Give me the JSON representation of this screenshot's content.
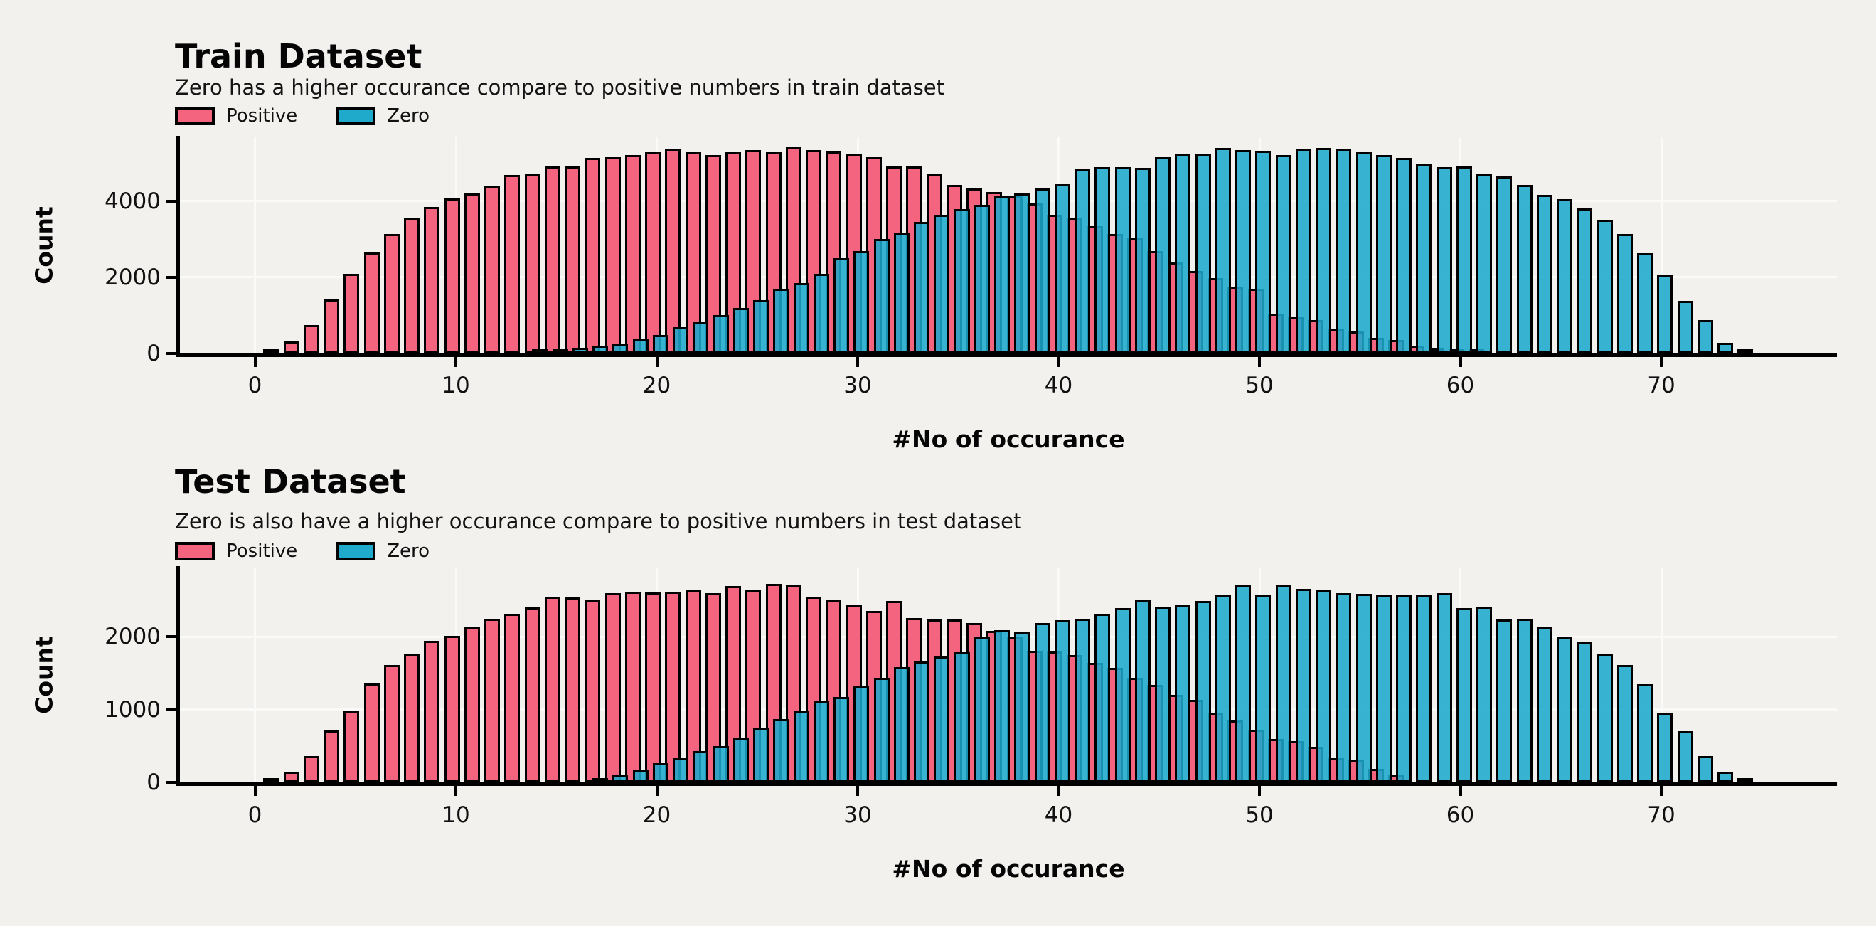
{
  "figure": {
    "background_color": "#f2f1ee",
    "gridline_color": "#fafaf8",
    "bar_edge_color": "#000000",
    "positive_color": "#f5647e",
    "zero_color": "#1fa9cb"
  },
  "chart_data": [
    {
      "type": "bar",
      "title": "Train Dataset",
      "subtitle": "Zero has a higher occurance compare to positive numbers in train dataset",
      "xlabel": "#No of occurance",
      "ylabel": "Count",
      "legend_position": "top-left",
      "grid": true,
      "xlim": [
        -3.8,
        78.7
      ],
      "ylim": [
        0,
        5680
      ],
      "xticks": [
        0,
        10,
        20,
        30,
        40,
        50,
        60,
        70
      ],
      "yticks": [
        0,
        2000,
        4000
      ],
      "series": [
        {
          "name": "Positive",
          "color": "#f5647e",
          "points": [
            [
              1,
              90
            ],
            [
              2,
              310
            ],
            [
              3,
              750
            ],
            [
              4,
              1420
            ],
            [
              5,
              2090
            ],
            [
              6,
              2660
            ],
            [
              7,
              3140
            ],
            [
              8,
              3560
            ],
            [
              9,
              3840
            ],
            [
              10,
              4080
            ],
            [
              11,
              4210
            ],
            [
              12,
              4390
            ],
            [
              13,
              4690
            ],
            [
              14,
              4720
            ],
            [
              15,
              4910
            ],
            [
              16,
              4920
            ],
            [
              17,
              5140
            ],
            [
              18,
              5160
            ],
            [
              19,
              5220
            ],
            [
              20,
              5280
            ],
            [
              21,
              5360
            ],
            [
              22,
              5280
            ],
            [
              23,
              5220
            ],
            [
              24,
              5280
            ],
            [
              25,
              5350
            ],
            [
              26,
              5280
            ],
            [
              27,
              5430
            ],
            [
              28,
              5350
            ],
            [
              29,
              5300
            ],
            [
              30,
              5250
            ],
            [
              31,
              5150
            ],
            [
              32,
              4920
            ],
            [
              33,
              4920
            ],
            [
              34,
              4710
            ],
            [
              35,
              4420
            ],
            [
              36,
              4330
            ],
            [
              37,
              4250
            ],
            [
              38,
              4150
            ],
            [
              39,
              3950
            ],
            [
              40,
              3650
            ],
            [
              41,
              3550
            ],
            [
              42,
              3350
            ],
            [
              43,
              3140
            ],
            [
              44,
              3050
            ],
            [
              45,
              2700
            ],
            [
              46,
              2400
            ],
            [
              47,
              2160
            ],
            [
              48,
              1980
            ],
            [
              49,
              1750
            ],
            [
              50,
              1700
            ],
            [
              51,
              1020
            ],
            [
              52,
              960
            ],
            [
              53,
              880
            ],
            [
              54,
              660
            ],
            [
              55,
              580
            ],
            [
              56,
              420
            ],
            [
              57,
              360
            ],
            [
              58,
              200
            ],
            [
              59,
              140
            ],
            [
              60,
              90
            ],
            [
              61,
              50
            ]
          ]
        },
        {
          "name": "Zero",
          "color": "#1fa9cb",
          "points": [
            [
              14,
              50
            ],
            [
              15,
              90
            ],
            [
              16,
              150
            ],
            [
              17,
              210
            ],
            [
              18,
              260
            ],
            [
              19,
              390
            ],
            [
              20,
              490
            ],
            [
              21,
              690
            ],
            [
              22,
              830
            ],
            [
              23,
              1000
            ],
            [
              24,
              1200
            ],
            [
              25,
              1400
            ],
            [
              26,
              1700
            ],
            [
              27,
              1850
            ],
            [
              28,
              2100
            ],
            [
              29,
              2500
            ],
            [
              30,
              2700
            ],
            [
              31,
              3000
            ],
            [
              32,
              3160
            ],
            [
              33,
              3450
            ],
            [
              34,
              3650
            ],
            [
              35,
              3800
            ],
            [
              36,
              3900
            ],
            [
              37,
              4150
            ],
            [
              38,
              4200
            ],
            [
              39,
              4330
            ],
            [
              40,
              4450
            ],
            [
              41,
              4850
            ],
            [
              42,
              4890
            ],
            [
              43,
              4890
            ],
            [
              44,
              4880
            ],
            [
              45,
              5150
            ],
            [
              46,
              5240
            ],
            [
              47,
              5250
            ],
            [
              48,
              5400
            ],
            [
              49,
              5350
            ],
            [
              50,
              5320
            ],
            [
              51,
              5220
            ],
            [
              52,
              5370
            ],
            [
              53,
              5400
            ],
            [
              54,
              5390
            ],
            [
              55,
              5280
            ],
            [
              56,
              5220
            ],
            [
              57,
              5140
            ],
            [
              58,
              4970
            ],
            [
              59,
              4900
            ],
            [
              60,
              4920
            ],
            [
              61,
              4700
            ],
            [
              62,
              4650
            ],
            [
              63,
              4430
            ],
            [
              64,
              4160
            ],
            [
              65,
              4060
            ],
            [
              66,
              3820
            ],
            [
              67,
              3520
            ],
            [
              68,
              3130
            ],
            [
              69,
              2630
            ],
            [
              70,
              2080
            ],
            [
              71,
              1380
            ],
            [
              72,
              880
            ],
            [
              73,
              280
            ],
            [
              74,
              60
            ]
          ]
        }
      ]
    },
    {
      "type": "bar",
      "title": "Test Dataset",
      "subtitle": "Zero is also have a higher occurance compare to positive numbers in test dataset",
      "xlabel": "#No of occurance",
      "ylabel": "Count",
      "legend_position": "top-left",
      "grid": true,
      "xlim": [
        -3.8,
        78.7
      ],
      "ylim": [
        0,
        2950
      ],
      "xticks": [
        0,
        10,
        20,
        30,
        40,
        50,
        60,
        70
      ],
      "yticks": [
        0,
        1000,
        2000
      ],
      "series": [
        {
          "name": "Positive",
          "color": "#f5647e",
          "points": [
            [
              1,
              40
            ],
            [
              2,
              150
            ],
            [
              3,
              360
            ],
            [
              4,
              710
            ],
            [
              5,
              980
            ],
            [
              6,
              1360
            ],
            [
              7,
              1610
            ],
            [
              8,
              1760
            ],
            [
              9,
              1940
            ],
            [
              10,
              2010
            ],
            [
              11,
              2130
            ],
            [
              12,
              2250
            ],
            [
              13,
              2320
            ],
            [
              14,
              2400
            ],
            [
              15,
              2550
            ],
            [
              16,
              2540
            ],
            [
              17,
              2500
            ],
            [
              18,
              2600
            ],
            [
              19,
              2620
            ],
            [
              20,
              2610
            ],
            [
              21,
              2620
            ],
            [
              22,
              2650
            ],
            [
              23,
              2600
            ],
            [
              24,
              2700
            ],
            [
              25,
              2650
            ],
            [
              26,
              2730
            ],
            [
              27,
              2720
            ],
            [
              28,
              2550
            ],
            [
              29,
              2500
            ],
            [
              30,
              2440
            ],
            [
              31,
              2350
            ],
            [
              32,
              2490
            ],
            [
              33,
              2260
            ],
            [
              34,
              2240
            ],
            [
              35,
              2240
            ],
            [
              36,
              2190
            ],
            [
              37,
              2080
            ],
            [
              38,
              2000
            ],
            [
              39,
              1810
            ],
            [
              40,
              1800
            ],
            [
              41,
              1750
            ],
            [
              42,
              1640
            ],
            [
              43,
              1570
            ],
            [
              44,
              1440
            ],
            [
              45,
              1340
            ],
            [
              46,
              1200
            ],
            [
              47,
              1130
            ],
            [
              48,
              960
            ],
            [
              49,
              850
            ],
            [
              50,
              720
            ],
            [
              51,
              600
            ],
            [
              52,
              570
            ],
            [
              53,
              490
            ],
            [
              54,
              330
            ],
            [
              55,
              310
            ],
            [
              56,
              190
            ],
            [
              57,
              95
            ]
          ]
        },
        {
          "name": "Zero",
          "color": "#1fa9cb",
          "points": [
            [
              17,
              50
            ],
            [
              18,
              95
            ],
            [
              19,
              170
            ],
            [
              20,
              260
            ],
            [
              21,
              330
            ],
            [
              22,
              430
            ],
            [
              23,
              500
            ],
            [
              24,
              610
            ],
            [
              25,
              740
            ],
            [
              26,
              870
            ],
            [
              27,
              980
            ],
            [
              28,
              1120
            ],
            [
              29,
              1170
            ],
            [
              30,
              1330
            ],
            [
              31,
              1440
            ],
            [
              32,
              1580
            ],
            [
              33,
              1660
            ],
            [
              34,
              1730
            ],
            [
              35,
              1790
            ],
            [
              36,
              1990
            ],
            [
              37,
              2090
            ],
            [
              38,
              2060
            ],
            [
              39,
              2190
            ],
            [
              40,
              2230
            ],
            [
              41,
              2250
            ],
            [
              42,
              2320
            ],
            [
              43,
              2390
            ],
            [
              44,
              2500
            ],
            [
              45,
              2410
            ],
            [
              46,
              2440
            ],
            [
              47,
              2490
            ],
            [
              48,
              2570
            ],
            [
              49,
              2720
            ],
            [
              50,
              2580
            ],
            [
              51,
              2720
            ],
            [
              52,
              2660
            ],
            [
              53,
              2640
            ],
            [
              54,
              2600
            ],
            [
              55,
              2590
            ],
            [
              56,
              2570
            ],
            [
              57,
              2570
            ],
            [
              58,
              2570
            ],
            [
              59,
              2600
            ],
            [
              60,
              2390
            ],
            [
              61,
              2410
            ],
            [
              62,
              2240
            ],
            [
              63,
              2250
            ],
            [
              64,
              2130
            ],
            [
              65,
              1990
            ],
            [
              66,
              1930
            ],
            [
              67,
              1760
            ],
            [
              68,
              1610
            ],
            [
              69,
              1350
            ],
            [
              70,
              960
            ],
            [
              71,
              700
            ],
            [
              72,
              360
            ],
            [
              73,
              150
            ],
            [
              74,
              30
            ]
          ]
        }
      ]
    }
  ]
}
